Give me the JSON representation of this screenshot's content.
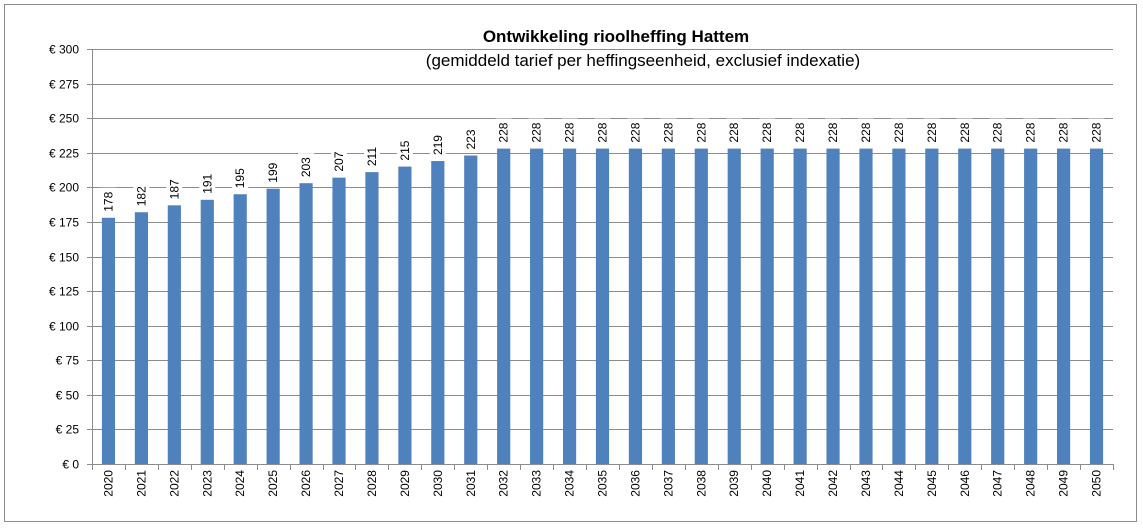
{
  "chart_data": {
    "type": "bar",
    "title": "Ontwikkeling rioolheffing Hattem",
    "subtitle": "(gemiddeld tarief per heffingseenheid, exclusief indexatie)",
    "xlabel": "",
    "ylabel": "",
    "ylim": [
      0,
      300
    ],
    "y_tick_labels": [
      "€ 0",
      "€ 25",
      "€ 50",
      "€ 75",
      "€ 100",
      "€ 125",
      "€ 150",
      "€ 175",
      "€ 200",
      "€ 225",
      "€ 250",
      "€ 275",
      "€ 300"
    ],
    "y_tick_values": [
      0,
      25,
      50,
      75,
      100,
      125,
      150,
      175,
      200,
      225,
      250,
      275,
      300
    ],
    "grid": true,
    "legend": "none",
    "bar_color": "#4f81bd",
    "categories": [
      "2020",
      "2021",
      "2022",
      "2023",
      "2024",
      "2025",
      "2026",
      "2027",
      "2028",
      "2029",
      "2030",
      "2031",
      "2032",
      "2033",
      "2034",
      "2035",
      "2036",
      "2037",
      "2038",
      "2039",
      "2040",
      "2041",
      "2042",
      "2043",
      "2044",
      "2045",
      "2046",
      "2047",
      "2048",
      "2049",
      "2050"
    ],
    "values": [
      178,
      182,
      187,
      191,
      195,
      199,
      203,
      207,
      211,
      215,
      219,
      223,
      228,
      228,
      228,
      228,
      228,
      228,
      228,
      228,
      228,
      228,
      228,
      228,
      228,
      228,
      228,
      228,
      228,
      228,
      228
    ],
    "data_labels": [
      "178",
      "182",
      "187",
      "191",
      "195",
      "199",
      "203",
      "207",
      "211",
      "215",
      "219",
      "223",
      "228",
      "228",
      "228",
      "228",
      "228",
      "228",
      "228",
      "228",
      "228",
      "228",
      "228",
      "228",
      "228",
      "228",
      "228",
      "228",
      "228",
      "228",
      "228"
    ]
  }
}
